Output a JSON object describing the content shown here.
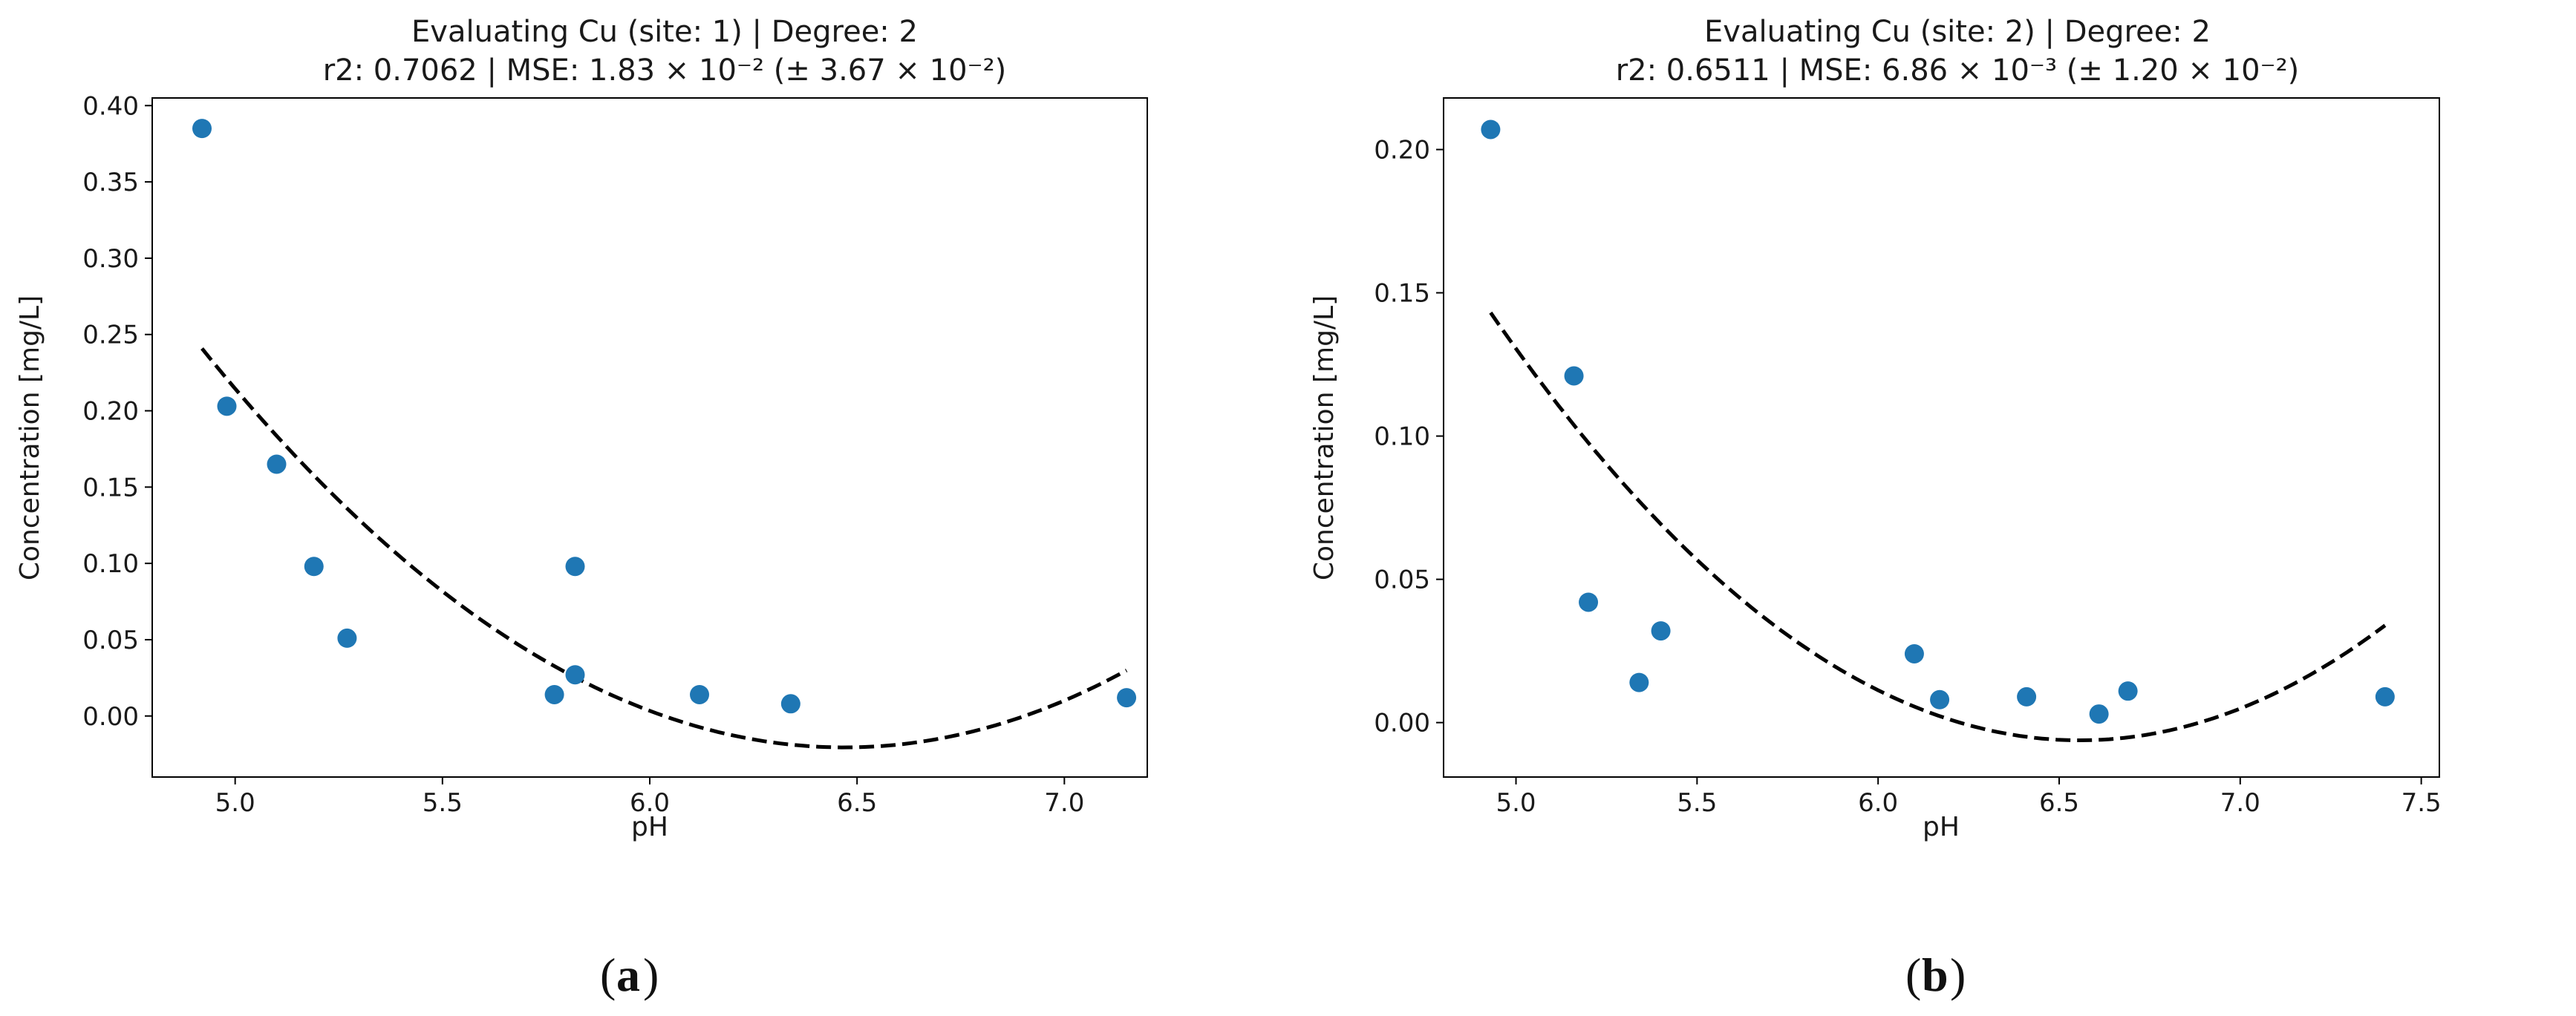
{
  "chart_data": [
    {
      "type": "scatter",
      "title": "Evaluating Cu (site: 1) | Degree: 2",
      "subtitle": "r2: 0.7062 | MSE: 1.83 × 10⁻² (± 3.67 × 10⁻²)",
      "xlabel": "pH",
      "ylabel": "Concentration [mg/L]",
      "xlim": [
        4.8,
        7.2
      ],
      "ylim": [
        -0.04,
        0.405
      ],
      "xticks": [
        "5.0",
        "5.5",
        "6.0",
        "6.5",
        "7.0"
      ],
      "yticks": [
        "0.00",
        "0.05",
        "0.10",
        "0.15",
        "0.20",
        "0.25",
        "0.30",
        "0.35",
        "0.40"
      ],
      "grid": false,
      "panel_label": "a",
      "series": [
        {
          "kind": "points",
          "color": "#1f77b4",
          "x": [
            4.92,
            4.98,
            5.1,
            5.19,
            5.27,
            5.77,
            5.82,
            5.82,
            6.12,
            6.34,
            7.15
          ],
          "y": [
            0.385,
            0.203,
            0.165,
            0.098,
            0.051,
            0.014,
            0.027,
            0.098,
            0.014,
            0.008,
            0.012
          ]
        },
        {
          "kind": "fit",
          "style": "dashed",
          "color": "#000000",
          "x_range": [
            4.92,
            7.15
          ],
          "coefficients": {
            "a": 0.1089,
            "b": -1.409,
            "c": 4.537
          }
        }
      ]
    },
    {
      "type": "scatter",
      "title": "Evaluating Cu (site: 2) | Degree: 2",
      "subtitle": "r2: 0.6511 | MSE: 6.86 × 10⁻³ (± 1.20 × 10⁻²)",
      "xlabel": "pH",
      "ylabel": "Concentration [mg/L]",
      "xlim": [
        4.8,
        7.55
      ],
      "ylim": [
        -0.019,
        0.218
      ],
      "xticks": [
        "5.0",
        "5.5",
        "6.0",
        "6.5",
        "7.0",
        "7.5"
      ],
      "yticks": [
        "0.00",
        "0.05",
        "0.10",
        "0.15",
        "0.20"
      ],
      "grid": false,
      "panel_label": "b",
      "series": [
        {
          "kind": "points",
          "color": "#1f77b4",
          "x": [
            4.93,
            5.16,
            5.2,
            5.34,
            5.4,
            6.1,
            6.17,
            6.41,
            6.61,
            6.69,
            7.4
          ],
          "y": [
            0.207,
            0.121,
            0.042,
            0.014,
            0.032,
            0.024,
            0.008,
            0.009,
            0.003,
            0.011,
            0.009
          ]
        },
        {
          "kind": "fit",
          "style": "dashed",
          "color": "#000000",
          "x_range": [
            4.93,
            7.4
          ],
          "coefficients": {
            "a": 0.0564,
            "b": -0.7396,
            "c": 2.4185
          }
        }
      ]
    }
  ]
}
